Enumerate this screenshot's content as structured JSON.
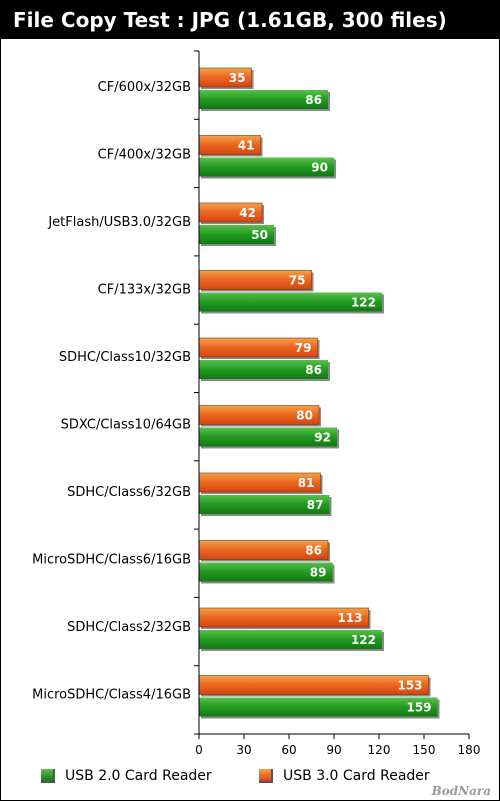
{
  "chart_data": {
    "type": "bar",
    "orientation": "horizontal",
    "title": "File Copy Test : JPG (1.61GB, 300 files)",
    "categories": [
      "CF/600x/32GB",
      "CF/400x/32GB",
      "JetFlash/USB3.0/32GB",
      "CF/133x/32GB",
      "SDHC/Class10/32GB",
      "SDXC/Class10/64GB",
      "SDHC/Class6/32GB",
      "MicroSDHC/Class6/16GB",
      "SDHC/Class2/32GB",
      "MicroSDHC/Class4/16GB"
    ],
    "series": [
      {
        "name": "USB 3.0 Card Reader",
        "color": "#e8541a",
        "values": [
          35,
          41,
          42,
          75,
          79,
          80,
          81,
          86,
          113,
          153
        ]
      },
      {
        "name": "USB 2.0 Card Reader",
        "color": "#1f9a1f",
        "values": [
          86,
          90,
          50,
          122,
          86,
          92,
          87,
          89,
          122,
          159
        ]
      }
    ],
    "xlim": [
      0,
      180
    ],
    "xticks": [
      0,
      30,
      60,
      90,
      120,
      150,
      180
    ],
    "grid": false,
    "legend_position": "bottom"
  },
  "legend": {
    "usb2_label": "USB 2.0 Card Reader",
    "usb3_label": "USB 3.0 Card Reader"
  },
  "watermark": "BodNara"
}
